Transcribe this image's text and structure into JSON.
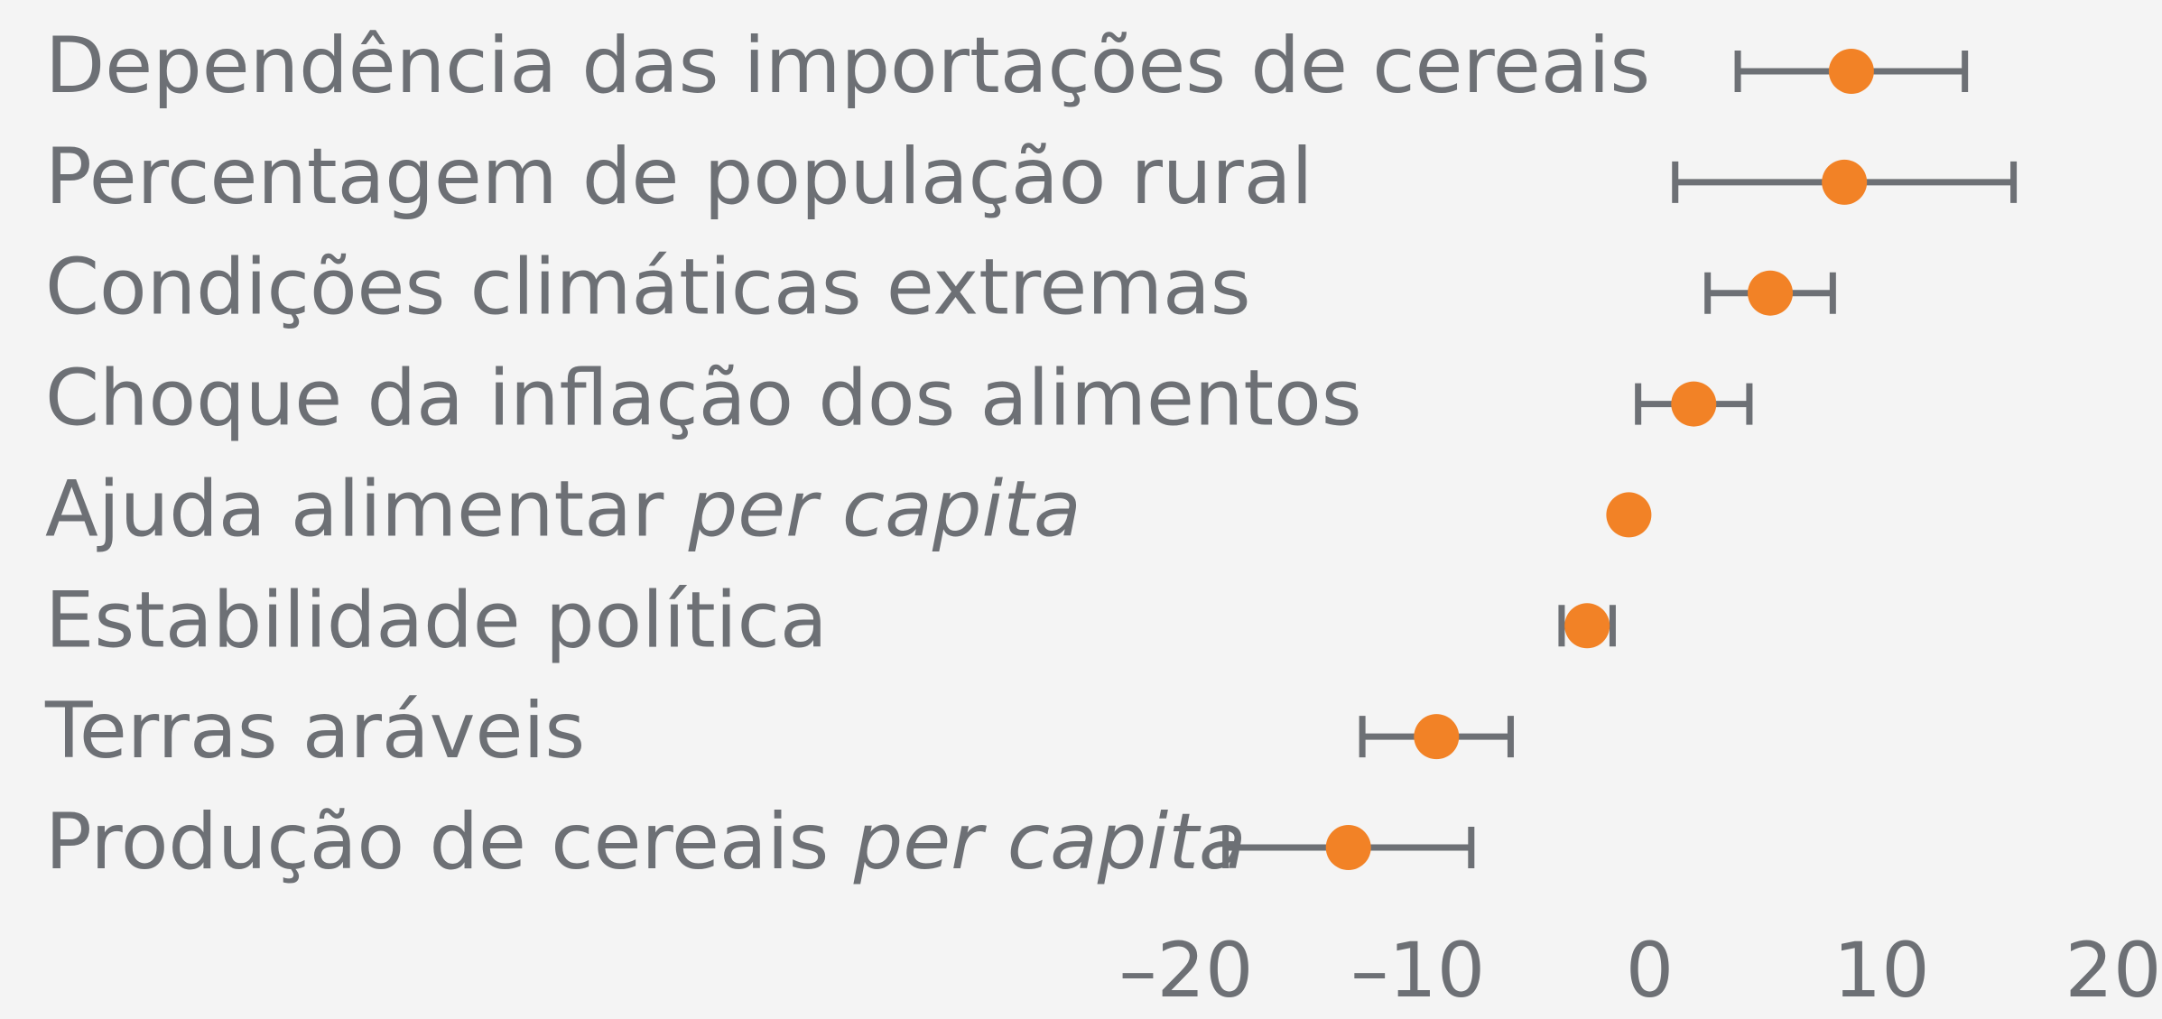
{
  "chart_data": {
    "type": "dot_errorbar",
    "categories": [
      [
        {
          "text": "Dependência das importações de cereais",
          "italic": false
        }
      ],
      [
        {
          "text": "Percentagem de população rural",
          "italic": false
        }
      ],
      [
        {
          "text": "Condições climáticas extremas",
          "italic": false
        }
      ],
      [
        {
          "text": "Choque da inflação dos alimentos",
          "italic": false
        }
      ],
      [
        {
          "text": "Ajuda alimentar ",
          "italic": false
        },
        {
          "text": "per capita",
          "italic": true
        }
      ],
      [
        {
          "text": "Estabilidade política",
          "italic": false
        }
      ],
      [
        {
          "text": "Terras aráveis",
          "italic": false
        }
      ],
      [
        {
          "text": "Produção de cereais ",
          "italic": false
        },
        {
          "text": "per capita",
          "italic": true
        }
      ]
    ],
    "values": [
      8.7,
      8.4,
      5.2,
      1.9,
      -0.9,
      -2.7,
      -9.2,
      -13.0
    ],
    "errors": [
      4.9,
      7.3,
      2.7,
      2.4,
      0,
      1.1,
      3.2,
      5.3
    ],
    "color": "#f28226",
    "error_color": "#6d7075",
    "xlim": [
      -20,
      20
    ],
    "xticks": [
      {
        "value": -20,
        "label": "–20"
      },
      {
        "value": -10,
        "label": "–10"
      },
      0,
      10,
      20
    ],
    "grid": false
  }
}
